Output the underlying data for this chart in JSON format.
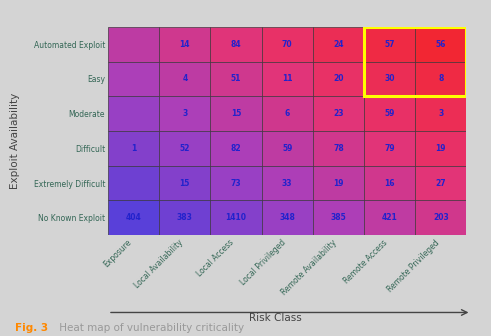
{
  "rows": [
    "Automated Exploit",
    "Easy",
    "Moderate",
    "Difficult",
    "Extremely Difficult",
    "No Known Exploit"
  ],
  "cols": [
    "Exposure",
    "Local Availability",
    "Local Access",
    "Local Privileged",
    "Remote Availability",
    "Remote Access",
    "Remote Privileged"
  ],
  "values": [
    [
      null,
      14,
      84,
      70,
      24,
      57,
      56
    ],
    [
      null,
      4,
      51,
      11,
      20,
      30,
      8
    ],
    [
      null,
      3,
      15,
      6,
      23,
      59,
      3
    ],
    [
      1,
      52,
      82,
      59,
      78,
      79,
      19
    ],
    [
      null,
      15,
      73,
      33,
      19,
      16,
      27
    ],
    [
      404,
      383,
      1410,
      348,
      385,
      421,
      203
    ]
  ],
  "highlight_rows": [
    0,
    1
  ],
  "highlight_cols": [
    5,
    6
  ],
  "highlight_color": "#ffff00",
  "text_color": "#2222cc",
  "ylabel": "Exploit Availability",
  "xlabel": "Risk Class",
  "fig_caption": "Fig. 3",
  "fig_text": " Heat map of vulnerability criticality",
  "caption_color": "#ff8800",
  "caption_text_color": "#999999",
  "fig_background": "#d4d4d4",
  "plot_bg": "#aaaaaa",
  "tick_color": "#336655",
  "border_color": "#444444",
  "arrow_color": "#444444"
}
